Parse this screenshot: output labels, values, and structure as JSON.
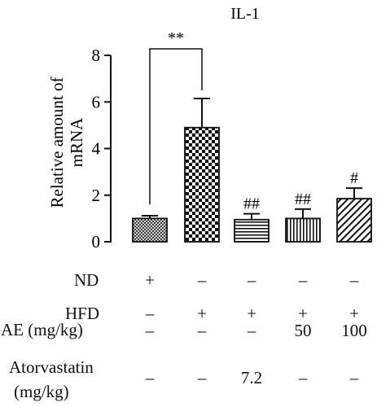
{
  "chart_data": {
    "type": "bar",
    "title": "IL-1",
    "ylabel_lines": [
      "Relative amount of",
      "mRNA"
    ],
    "ylim": [
      0,
      8
    ],
    "yticks": [
      "0",
      "2",
      "4",
      "6",
      "8"
    ],
    "grid": false,
    "legend": "none",
    "series": [
      {
        "values": [
          1.0,
          4.9,
          0.95,
          1.0,
          1.85
        ],
        "errors": [
          0.12,
          1.25,
          0.25,
          0.4,
          0.45
        ],
        "annotations": [
          "",
          "",
          "##",
          "##",
          "#"
        ],
        "patterns": [
          "crosshatch",
          "checker",
          "horizontal",
          "vertical",
          "diagonal"
        ]
      }
    ],
    "significance": {
      "bracket": [
        0,
        1
      ],
      "label": "**"
    }
  },
  "design_table": {
    "rows": [
      {
        "label": "ND",
        "values": [
          "+",
          "–",
          "–",
          "–",
          "–"
        ]
      },
      {
        "label": "HFD",
        "values": [
          "–",
          "+",
          "+",
          "+",
          "+"
        ]
      },
      {
        "label": "AE (mg/kg)",
        "values": [
          "–",
          "–",
          "–",
          "50",
          "100"
        ]
      },
      {
        "label_lines": [
          "Atorvastatin",
          "(mg/kg)"
        ],
        "values": [
          "–",
          "–",
          "7.2",
          "–",
          "–"
        ]
      }
    ]
  }
}
